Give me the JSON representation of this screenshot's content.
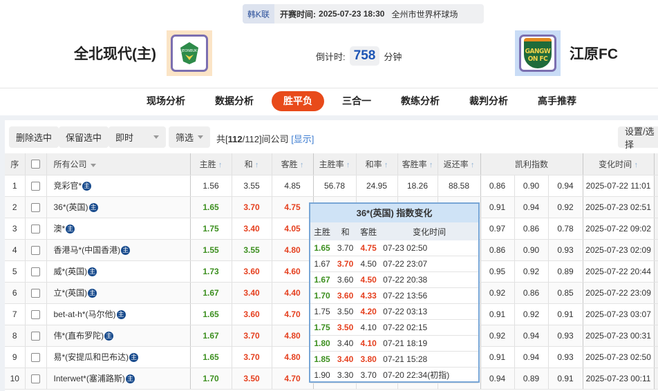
{
  "match": {
    "league": "韩K联",
    "kickoff_label": "开赛时间:",
    "kickoff": "2025-07-23 18:30",
    "venue": "全州市世界杯球场",
    "home": "全北现代(主)",
    "away": "江原FC",
    "home_logo_text": "JEONBUK",
    "away_logo_text": "GANGWON FC",
    "countdown_label": "倒计时:",
    "countdown": "758",
    "countdown_unit": "分钟"
  },
  "nav": [
    {
      "label": "现场分析"
    },
    {
      "label": "数据分析"
    },
    {
      "label": "胜平负",
      "active": true
    },
    {
      "label": "三合一"
    },
    {
      "label": "教练分析"
    },
    {
      "label": "裁判分析"
    },
    {
      "label": "高手推荐"
    }
  ],
  "toolbar": {
    "delete": "删除选中",
    "keep": "保留选中",
    "mode": "即时",
    "filter": "筛选",
    "count_prefix": "共[",
    "count_a": "112",
    "count_b": "/112]间公司",
    "show": "[显示]",
    "settings": "设置/选择"
  },
  "headers": {
    "idx": "序",
    "company": "所有公司",
    "home": "主胜",
    "draw": "和",
    "away": "客胜",
    "home_rate": "主胜率",
    "draw_rate": "和率",
    "away_rate": "客胜率",
    "return_rate": "返还率",
    "kelly": "凯利指数",
    "time": "变化时间",
    "up_icon": "↑"
  },
  "colors": {
    "up": "#3c8f1f",
    "down": "#e5401f",
    "accent": "#e84a1a"
  },
  "rows": [
    {
      "idx": "1",
      "company": "竞彩官*",
      "odds": [
        "1.56",
        "3.55",
        "4.85"
      ],
      "c": [
        "",
        "",
        ""
      ],
      "rates": [
        "56.78",
        "24.95",
        "18.26",
        "88.58"
      ],
      "kelly": [
        "0.86",
        "0.90",
        "0.94"
      ],
      "time": "2025-07-22 11:01"
    },
    {
      "idx": "2",
      "company": "36*(英国)",
      "odds": [
        "1.65",
        "3.70",
        "4.75"
      ],
      "c": [
        "g",
        "r",
        "r"
      ],
      "kelly": [
        "0.91",
        "0.94",
        "0.92"
      ],
      "time": "2025-07-23 02:51"
    },
    {
      "idx": "3",
      "company": "澳*",
      "odds": [
        "1.75",
        "3.40",
        "4.05"
      ],
      "c": [
        "g",
        "r",
        "r"
      ],
      "kelly": [
        "0.97",
        "0.86",
        "0.78"
      ],
      "time": "2025-07-22 09:02"
    },
    {
      "idx": "4",
      "company": "香港马*(中国香港)",
      "odds": [
        "1.55",
        "3.55",
        "4.80"
      ],
      "c": [
        "g",
        "g",
        "r"
      ],
      "kelly": [
        "0.86",
        "0.90",
        "0.93"
      ],
      "time": "2025-07-23 02:09"
    },
    {
      "idx": "5",
      "company": "威*(英国)",
      "odds": [
        "1.73",
        "3.60",
        "4.60"
      ],
      "c": [
        "g",
        "r",
        "r"
      ],
      "kelly": [
        "0.95",
        "0.92",
        "0.89"
      ],
      "time": "2025-07-22 20:44"
    },
    {
      "idx": "6",
      "company": "立*(英国)",
      "odds": [
        "1.67",
        "3.40",
        "4.40"
      ],
      "c": [
        "g",
        "r",
        "r"
      ],
      "kelly": [
        "0.92",
        "0.86",
        "0.85"
      ],
      "time": "2025-07-22 23:09"
    },
    {
      "idx": "7",
      "company": "bet-at-h*(马尔他)",
      "odds": [
        "1.65",
        "3.60",
        "4.70"
      ],
      "c": [
        "g",
        "r",
        "r"
      ],
      "kelly": [
        "0.91",
        "0.92",
        "0.91"
      ],
      "time": "2025-07-23 03:07"
    },
    {
      "idx": "8",
      "company": "伟*(直布罗陀)",
      "odds": [
        "1.67",
        "3.70",
        "4.80"
      ],
      "c": [
        "g",
        "r",
        "r"
      ],
      "kelly": [
        "0.92",
        "0.94",
        "0.93"
      ],
      "time": "2025-07-23 00:31"
    },
    {
      "idx": "9",
      "company": "易*(安提瓜和巴布达)",
      "odds": [
        "1.65",
        "3.70",
        "4.80"
      ],
      "c": [
        "g",
        "r",
        "r"
      ],
      "kelly": [
        "0.91",
        "0.94",
        "0.93"
      ],
      "time": "2025-07-23 02:50"
    },
    {
      "idx": "10",
      "company": "Interwet*(塞浦路斯)",
      "odds": [
        "1.70",
        "3.50",
        "4.70"
      ],
      "c": [
        "g",
        "r",
        "r"
      ],
      "kelly": [
        "0.94",
        "0.89",
        "0.91"
      ],
      "time": "2025-07-23 00:11"
    }
  ],
  "badge": "主",
  "popup": {
    "title": "36*(英国) 指数变化",
    "headers": [
      "主胜",
      "和",
      "客胜",
      "变化时间"
    ],
    "rows": [
      {
        "v": [
          "1.65",
          "3.70",
          "4.75"
        ],
        "c": [
          "g",
          "",
          "r"
        ],
        "t": "07-23 02:50"
      },
      {
        "v": [
          "1.67",
          "3.70",
          "4.50"
        ],
        "c": [
          "",
          "r",
          ""
        ],
        "t": "07-22 23:07"
      },
      {
        "v": [
          "1.67",
          "3.60",
          "4.50"
        ],
        "c": [
          "g",
          "",
          "r"
        ],
        "t": "07-22 20:38"
      },
      {
        "v": [
          "1.70",
          "3.60",
          "4.33"
        ],
        "c": [
          "g",
          "r",
          "r"
        ],
        "t": "07-22 13:56"
      },
      {
        "v": [
          "1.75",
          "3.50",
          "4.20"
        ],
        "c": [
          "",
          "",
          "r"
        ],
        "t": "07-22 03:13"
      },
      {
        "v": [
          "1.75",
          "3.50",
          "4.10"
        ],
        "c": [
          "g",
          "r",
          ""
        ],
        "t": "07-22 02:15"
      },
      {
        "v": [
          "1.80",
          "3.40",
          "4.10"
        ],
        "c": [
          "g",
          "",
          "r"
        ],
        "t": "07-21 18:19"
      },
      {
        "v": [
          "1.85",
          "3.40",
          "3.80"
        ],
        "c": [
          "g",
          "r",
          "r"
        ],
        "t": "07-21 15:28"
      },
      {
        "v": [
          "1.90",
          "3.30",
          "3.70"
        ],
        "c": [
          "",
          "",
          ""
        ],
        "t": "07-20 22:34(初指)"
      }
    ]
  }
}
